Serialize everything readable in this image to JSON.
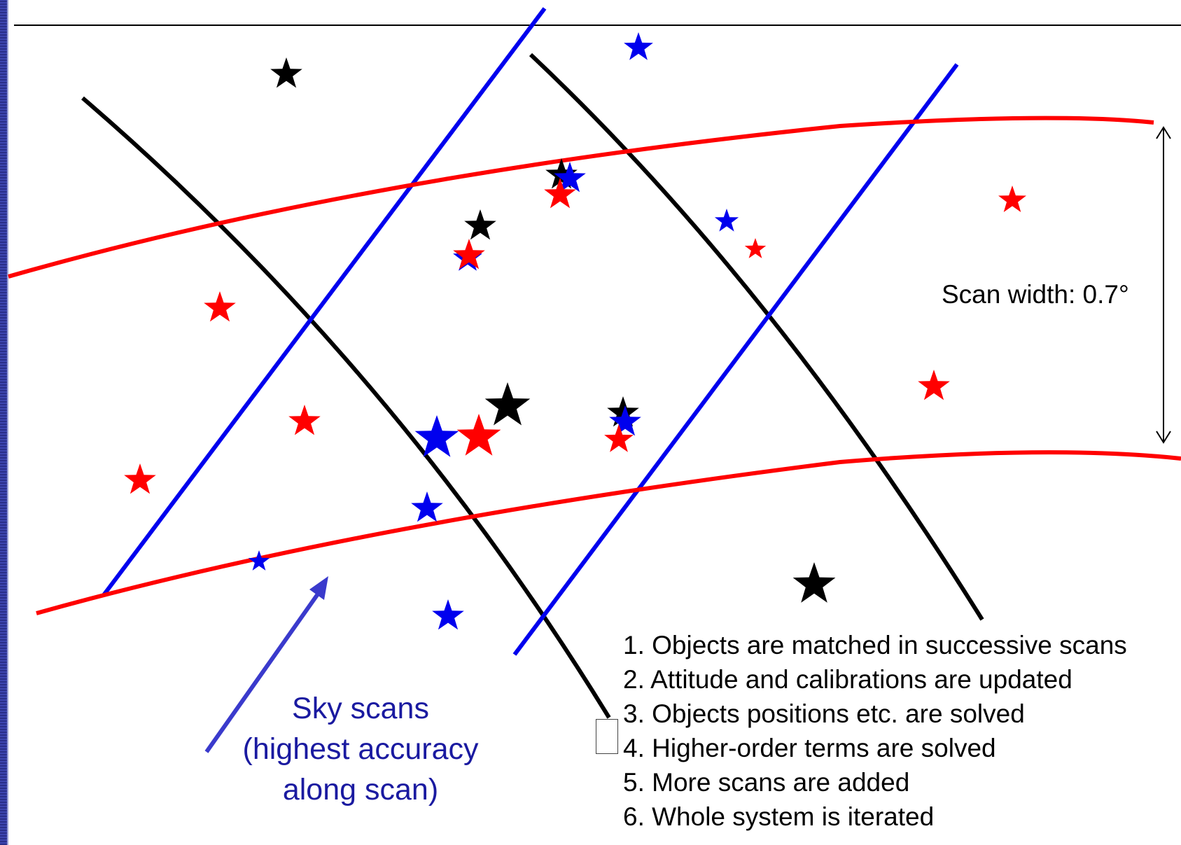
{
  "scan_width_label": "Scan width: 0.7°",
  "sky_label": {
    "line1": "Sky scans",
    "line2": "(highest accuracy",
    "line3": "along scan)"
  },
  "steps": [
    "1. Objects are matched in successive scans",
    "2. Attitude and calibrations are updated",
    "3. Objects positions etc. are solved",
    "4. Higher-order terms are solved",
    "5. More scans are added",
    "6. Whole system is iterated"
  ],
  "colors": {
    "red": "#ff0000",
    "blue": "#0000ee",
    "black": "#000000",
    "label_blue": "#1a1aa0",
    "arrow_blue": "#3a3acc"
  },
  "icons": {
    "star": "star-icon",
    "arrow": "arrow-icon"
  }
}
